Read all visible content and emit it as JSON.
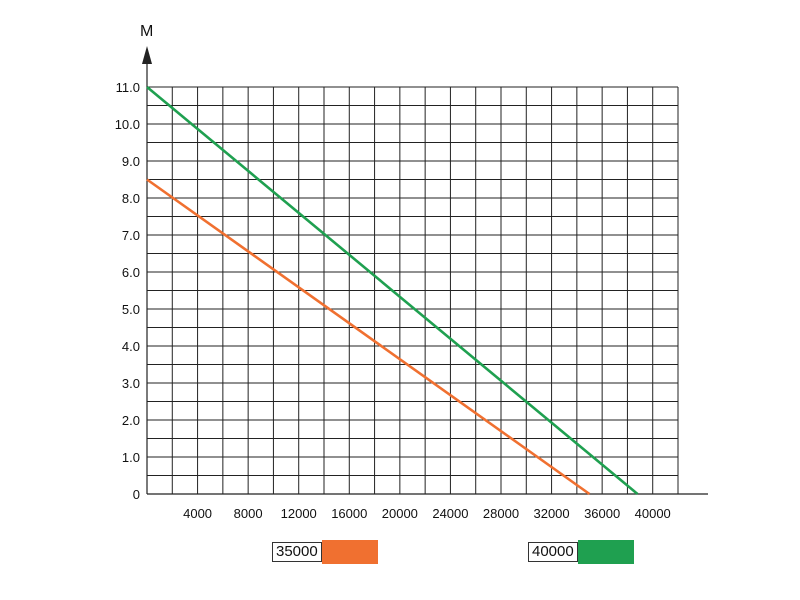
{
  "chart_data": {
    "type": "line",
    "title": "",
    "xlabel": "",
    "ylabel": "M",
    "xlim": [
      0,
      42000
    ],
    "ylim": [
      0,
      11
    ],
    "grid": true,
    "legend_placement": "bottom",
    "x_ticks": [
      "4000",
      "8000",
      "12000",
      "16000",
      "20000",
      "24000",
      "28000",
      "32000",
      "36000",
      "40000"
    ],
    "y_ticks": [
      "0",
      "1.0",
      "2.0",
      "3.0",
      "4.0",
      "5.0",
      "6.0",
      "7.0",
      "8.0",
      "9.0",
      "10.0",
      "11.0"
    ],
    "series": [
      {
        "name": "35000",
        "color": "#f07030",
        "x": [
          0,
          35000
        ],
        "y": [
          8.5,
          0
        ]
      },
      {
        "name": "40000",
        "color": "#1fa050",
        "x": [
          0,
          38800
        ],
        "y": [
          11.0,
          0
        ]
      }
    ]
  }
}
